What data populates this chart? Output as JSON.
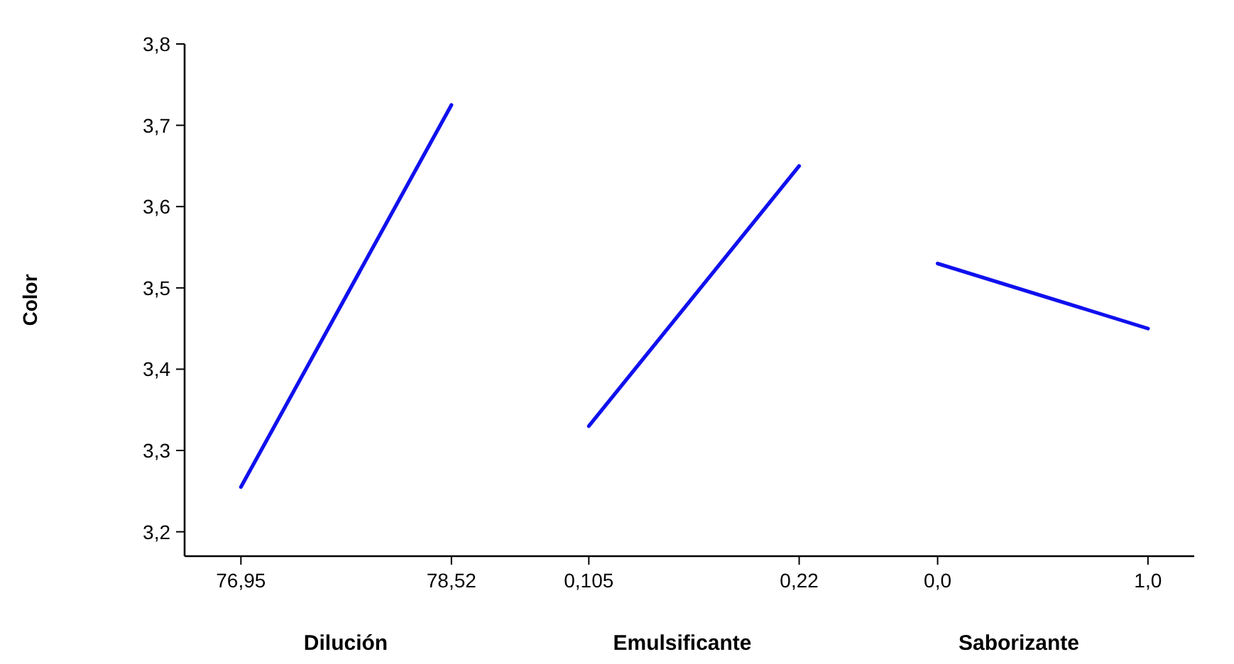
{
  "chart_data": [
    {
      "type": "line",
      "xlabel": "Dilución",
      "ylabel": "Color",
      "x": [
        76.95,
        78.52
      ],
      "xlim": [
        76.53,
        79.04
      ],
      "xticks": [
        {
          "value": 76.95,
          "label": "76,95"
        },
        {
          "value": 78.52,
          "label": "78,52"
        }
      ],
      "ylim": [
        3.17,
        3.8
      ],
      "yticks": [
        {
          "value": 3.2,
          "label": "3,2"
        },
        {
          "value": 3.3,
          "label": "3,3"
        },
        {
          "value": 3.4,
          "label": "3,4"
        },
        {
          "value": 3.5,
          "label": "3,5"
        },
        {
          "value": 3.6,
          "label": "3,6"
        },
        {
          "value": 3.7,
          "label": "3,7"
        },
        {
          "value": 3.8,
          "label": "3,8"
        }
      ],
      "series": [
        {
          "color": "#1010ee",
          "values": [
            3.255,
            3.725
          ]
        }
      ]
    },
    {
      "type": "line",
      "xlabel": "Emulsificante",
      "x": [
        0.105,
        0.22
      ],
      "xlim": [
        0.068,
        0.252
      ],
      "xticks": [
        {
          "value": 0.105,
          "label": "0,105"
        },
        {
          "value": 0.22,
          "label": "0,22"
        }
      ],
      "ylim": [
        3.17,
        3.8
      ],
      "tick_labels": "x",
      "series": [
        {
          "color": "#1010ee",
          "values": [
            3.33,
            3.65
          ]
        }
      ]
    },
    {
      "type": "line",
      "xlabel": "Saborizante",
      "x": [
        0,
        1
      ],
      "xlim": [
        -0.38,
        1.22
      ],
      "xticks": [
        {
          "value": 0,
          "label": "0,0"
        },
        {
          "value": 1,
          "label": "1,0"
        }
      ],
      "ylim": [
        3.17,
        3.8
      ],
      "tick_labels": "x",
      "series": [
        {
          "color": "#1010ee",
          "values": [
            3.53,
            3.45
          ]
        }
      ]
    }
  ]
}
